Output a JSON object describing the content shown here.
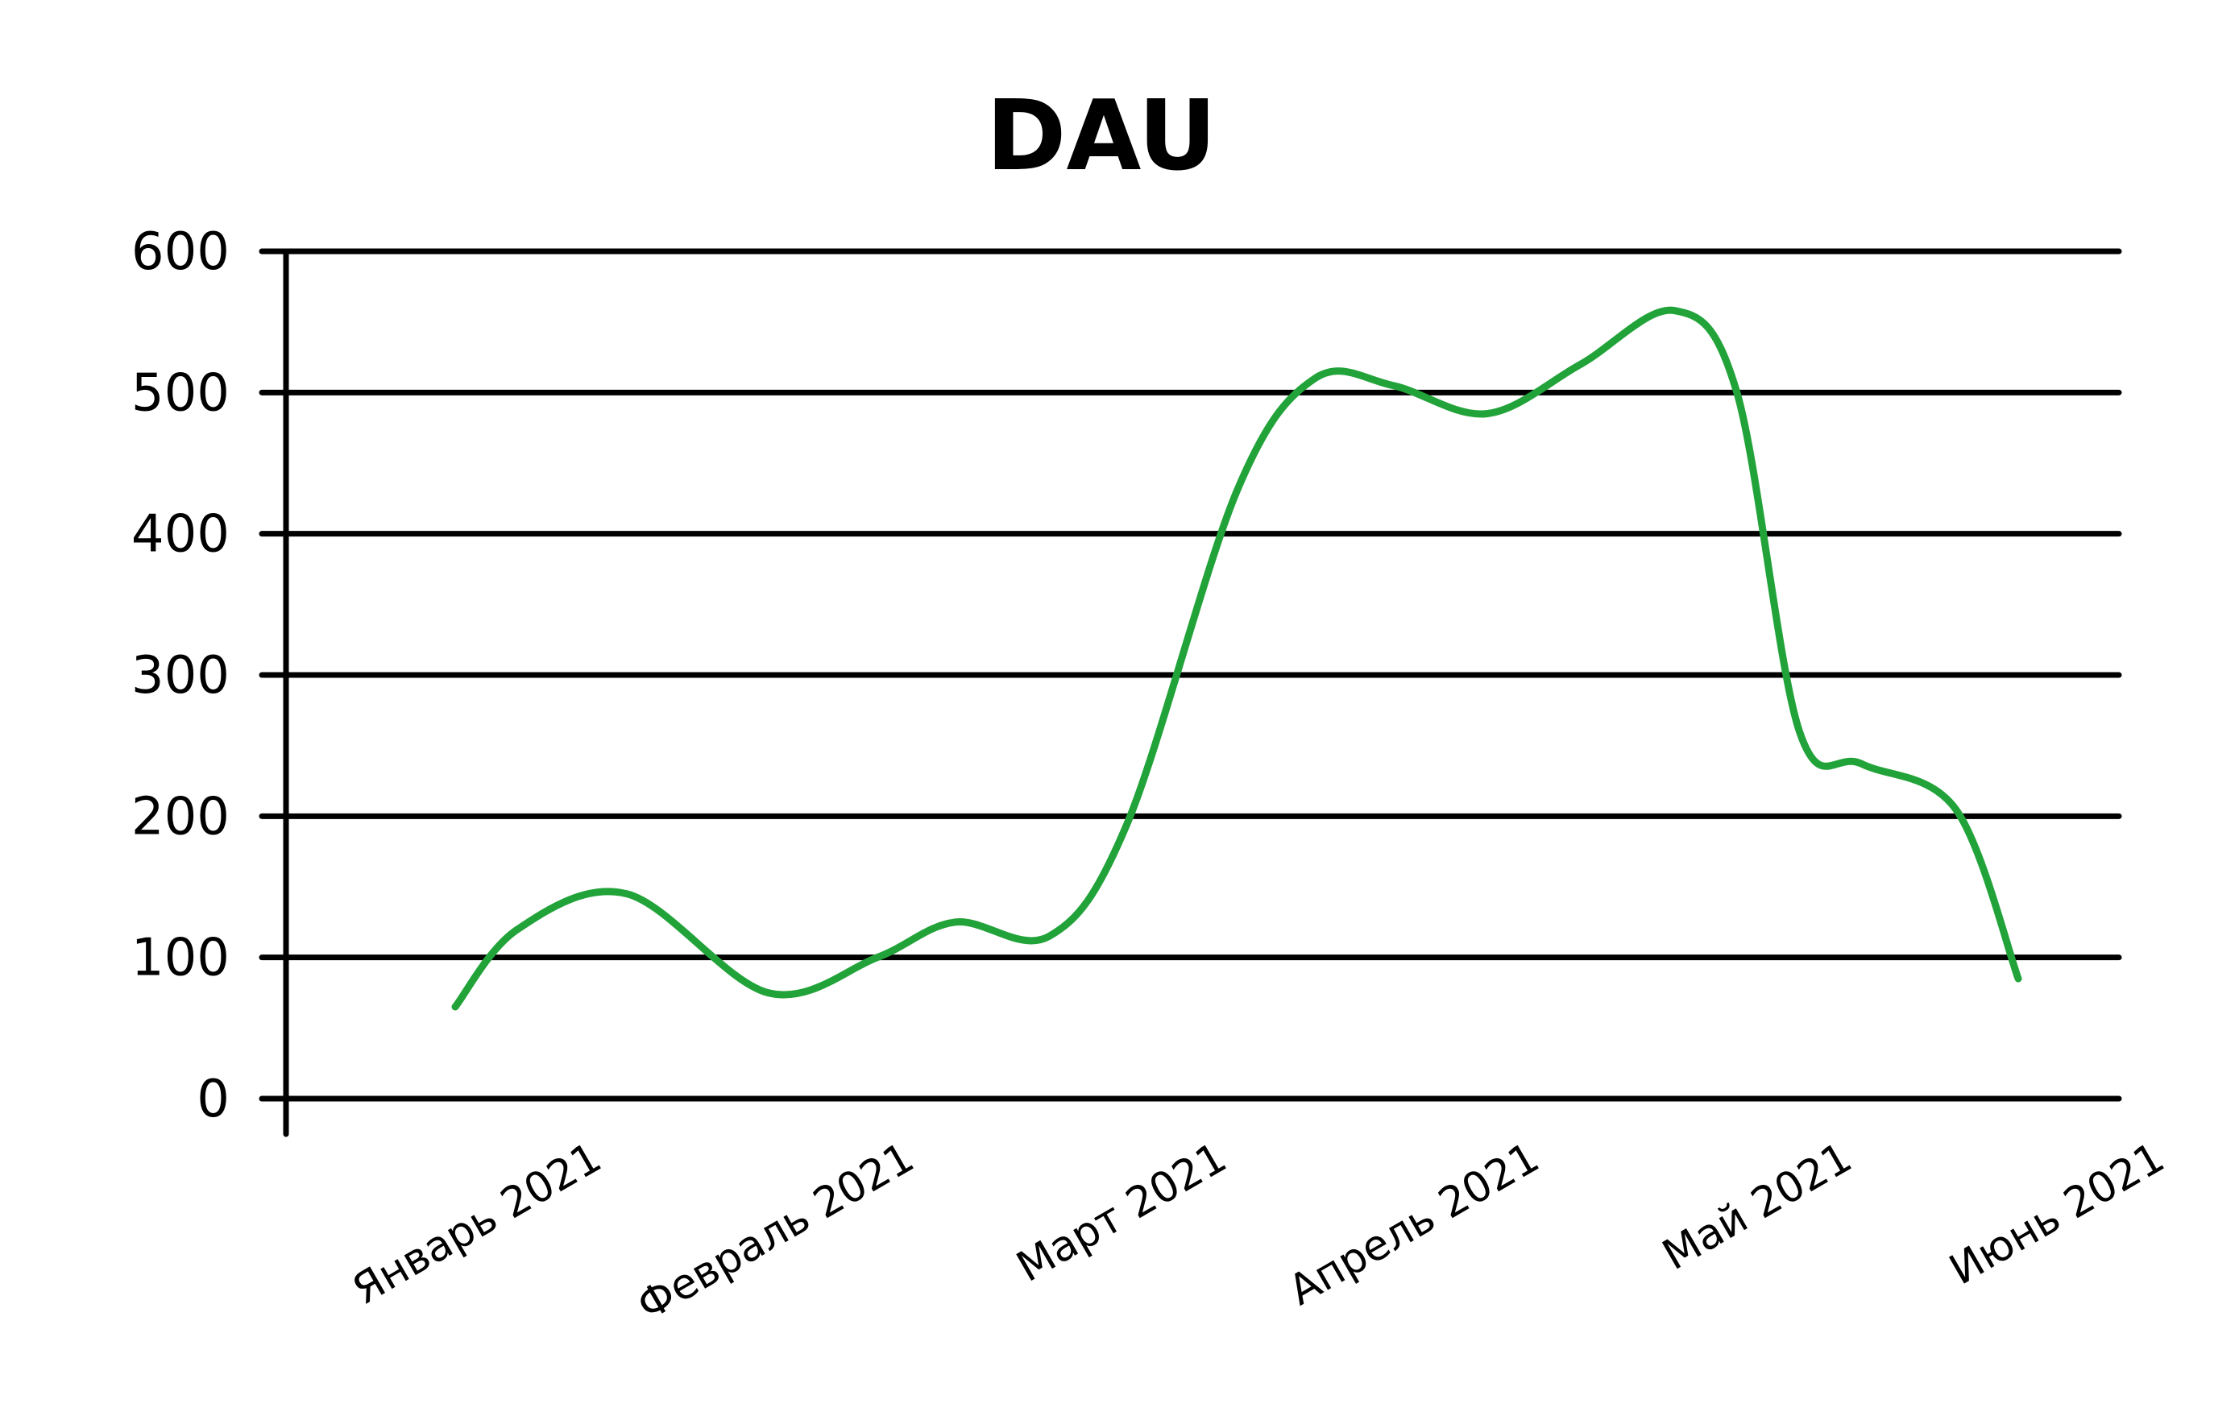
{
  "chart_data": {
    "type": "line",
    "title": "DAU",
    "xlabel": "",
    "ylabel": "",
    "ylim": [
      0,
      600
    ],
    "yticks": [
      0,
      100,
      200,
      300,
      400,
      500,
      600
    ],
    "ytick_labels": [
      "0",
      "100",
      "200",
      "300",
      "400",
      "500",
      "600"
    ],
    "categories": [
      "Январь 2021",
      "Февраль 2021",
      "Март 2021",
      "Апрель 2021",
      "Май 2021",
      "Июнь 2021"
    ],
    "grid": true,
    "legend": "none",
    "series": [
      {
        "color": "#22a33a",
        "x": [
          0,
          0.2,
          0.55,
          1.0,
          1.35,
          1.6,
          1.9,
          2.15,
          2.5,
          2.75,
          3.0,
          3.3,
          3.6,
          3.9,
          4.1,
          4.3,
          4.5,
          4.8,
          5.0
        ],
        "values": [
          65,
          120,
          145,
          75,
          100,
          125,
          115,
          195,
          430,
          510,
          505,
          485,
          520,
          558,
          500,
          260,
          237,
          205,
          85
        ]
      }
    ]
  }
}
